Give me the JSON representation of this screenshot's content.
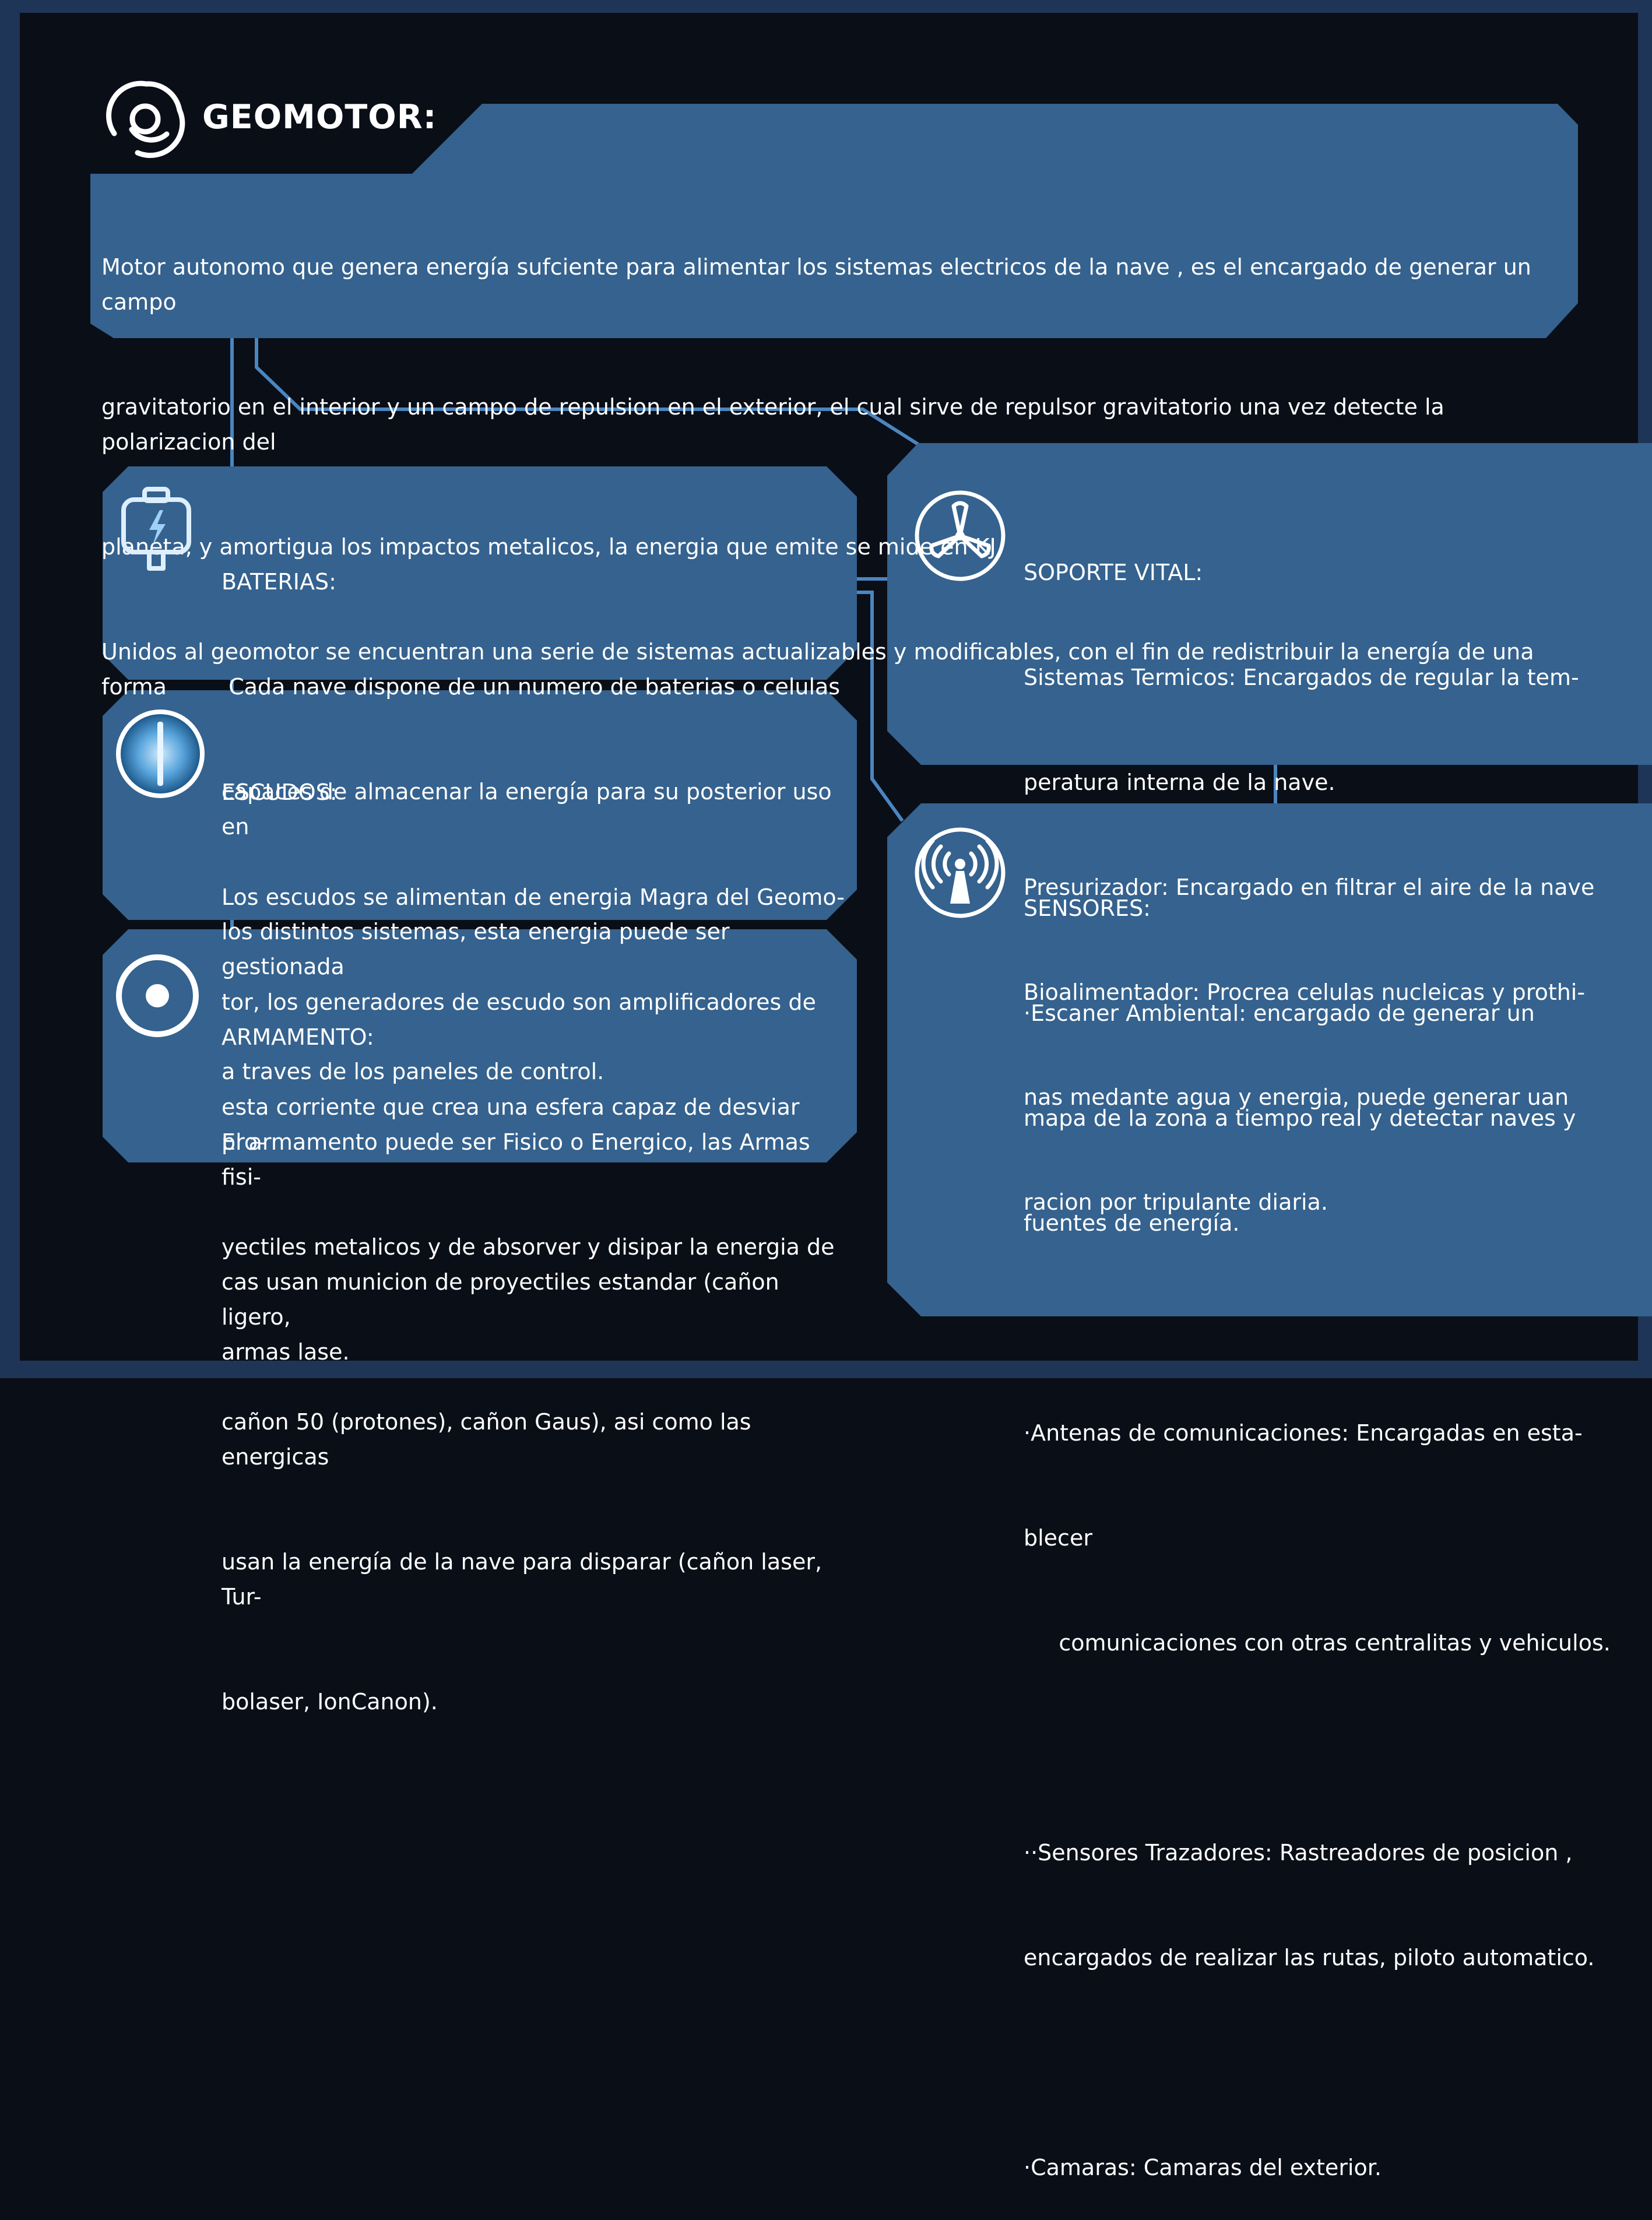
{
  "geomotor": {
    "title": "GEOMOTOR:",
    "icon": "swirl-icon",
    "lines": [
      "Motor autonomo que genera energía sufciente para alimentar los sistemas electricos de la nave , es el encargado de generar un campo",
      "gravitatorio en el interior y un campo de repulsion en el exterior, el cual sirve de repulsor gravitatorio una vez detecte la polarizacion del",
      "planeta, y amortigua los impactos metalicos, la energia que emite se mide en KJ.",
      "Unidos al geomotor se encuentran una serie de sistemas actualizables y modificables, con el fin de redistribuir la energía de una forma"
    ]
  },
  "baterias": {
    "icon": "battery-lightning-icon",
    "lines": [
      "BATERIAS:",
      " Cada nave dispone de un numero de baterias o celulas",
      "capaces de almacenar la energía para su posterior uso en",
      "los distintos sistemas, esta energia puede ser gestionada",
      "a traves de los paneles de control."
    ]
  },
  "escudos": {
    "icon": "shield-orb-icon",
    "lines": [
      "ESCUDOS:",
      "Los escudos se alimentan de energia Magra del Geomo-",
      "tor, los generadores de escudo son amplificadores de",
      "esta corriente que crea una esfera capaz de desviar pro-",
      "yectiles metalicos y de absorver y disipar la energia de",
      "armas lase."
    ]
  },
  "armamento": {
    "icon": "target-icon",
    "lines": [
      "ARMAMENTO:",
      "El armamento puede ser Fisico o Energico, las Armas fisi-",
      "cas usan municion de proyectiles estandar (cañon ligero,",
      "cañon 50 (protones), cañon Gaus), asi como las energicas",
      "usan la energía de la nave para disparar (cañon laser, Tur-",
      "bolaser, IonCanon)."
    ]
  },
  "soporte": {
    "icon": "fan-icon",
    "lines": [
      "SOPORTE VITAL:",
      "Sistemas Termicos: Encargados de regular la tem-",
      "peratura interna de la nave.",
      "Presurizador: Encargado en filtrar el aire de la nave",
      "Bioalimentador: Procrea celulas nucleicas y prothi-",
      "nas medante agua y energia, puede generar uan",
      "racion por tripulante diaria."
    ]
  },
  "sensores": {
    "icon": "antenna-signal-icon",
    "lines": [
      "SENSORES:",
      "·Escaner Ambiental: encargado de generar un",
      "mapa de la zona a tiempo real y detectar naves y",
      "fuentes de energía.",
      "",
      "·Antenas de comunicaciones: Encargadas en esta-",
      "blecer",
      "     comunicaciones con otras centralitas y vehiculos.",
      "",
      "··Sensores Trazadores: Rastreadores de posicion ,",
      "encargados de realizar las rutas, piloto automatico.",
      "",
      "·Camaras: Camaras del exterior."
    ]
  },
  "colors": {
    "background": "#0a0e17",
    "panel": "#35628e",
    "frame": "#1f3557",
    "wire": "#4a86c0",
    "text": "#ffffff"
  }
}
